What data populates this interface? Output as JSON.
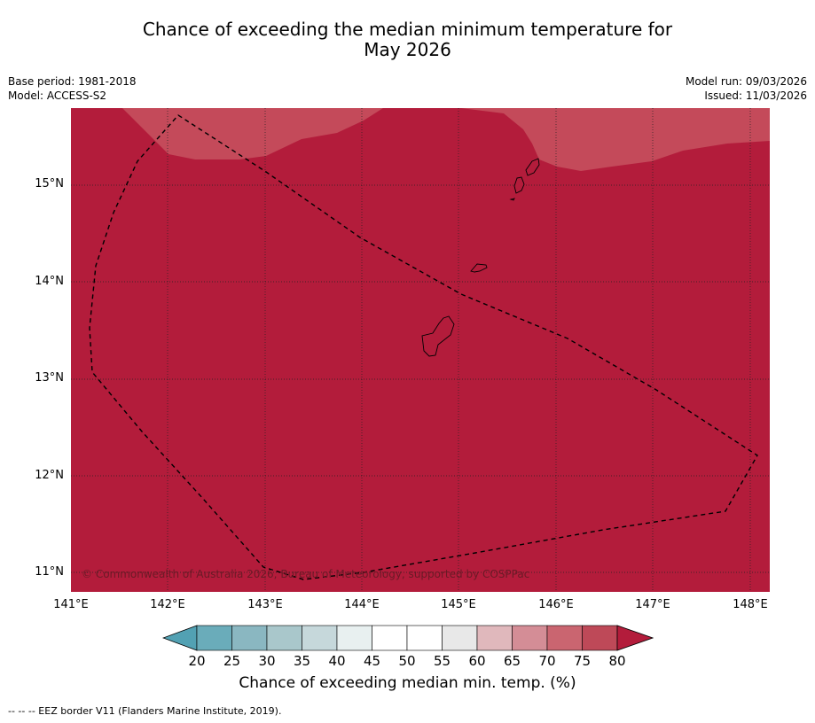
{
  "title_line1": "Chance of exceeding the median minimum temperature for",
  "title_line2": "May 2026",
  "base_period": "Base period: 1981-2018",
  "model": "Model: ACCESS-S2",
  "model_run": "Model run: 09/03/2026",
  "issued": "Issued: 11/03/2026",
  "copyright": "© Commonwealth of Australia 2026, Bureau of Meteorology, supported by COSPPac",
  "lat_labels": [
    "15°N",
    "14°N",
    "13°N",
    "12°N",
    "11°N"
  ],
  "lon_labels": [
    "141°E",
    "142°E",
    "143°E",
    "144°E",
    "145°E",
    "146°E",
    "147°E",
    "148°E"
  ],
  "colors": {
    "main_fill": "#b31c3b",
    "upper_fill": "#c44a5a",
    "colorbar": [
      "#6aacba",
      "#8ab7c1",
      "#a9c7cb",
      "#c6d8db",
      "#e8f0f0",
      "#ffffff",
      "#ffffff",
      "#e8e8e8",
      "#e0b8bc",
      "#d48d96",
      "#ca6570",
      "#be4958"
    ],
    "low_extend": "#52a1b3",
    "high_extend": "#b31c3b"
  },
  "colorbar_labels": [
    "20",
    "25",
    "30",
    "35",
    "40",
    "45",
    "50",
    "55",
    "60",
    "65",
    "70",
    "75",
    "80"
  ],
  "colorbar_title": "Chance of exceeding median min. temp. (%)",
  "footer": "--  --  -- EEZ border V11 (Flanders Marine Institute, 2019)."
}
